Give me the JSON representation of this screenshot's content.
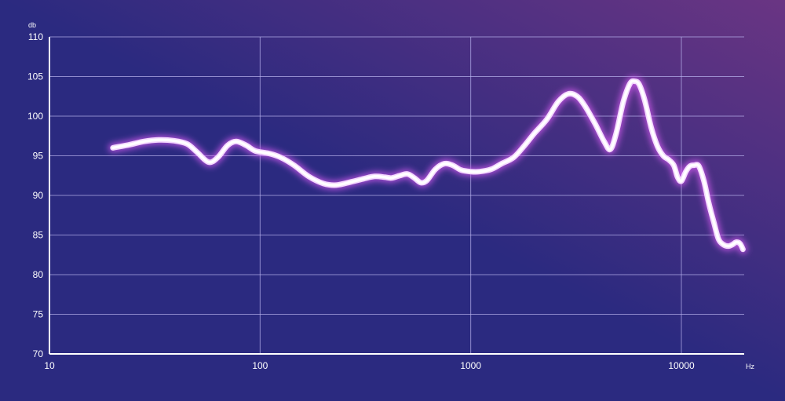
{
  "colors": {
    "background_start": "#2b2a80",
    "background_end": "#6a3583",
    "grid": "#b9b3ee",
    "axis": "#ffffff",
    "text": "#ffffff",
    "curve": "#ffffff",
    "curve_glow": "#d45cf0"
  },
  "chart_data": {
    "type": "line",
    "xscale": "log",
    "xlim": [
      10,
      20000
    ],
    "ylim": [
      70,
      110
    ],
    "xunit": "Hz",
    "yunit": "db",
    "xticks": [
      10,
      100,
      1000,
      10000
    ],
    "xtick_labels": [
      "10",
      "100",
      "1000",
      "10000"
    ],
    "yticks": [
      70,
      75,
      80,
      85,
      90,
      95,
      100,
      105,
      110
    ],
    "ytick_labels": [
      "70",
      "75",
      "80",
      "85",
      "90",
      "95",
      "100",
      "105",
      "110"
    ],
    "grid": true,
    "legend": "none",
    "series": [
      {
        "x": [
          20,
          24,
          28,
          33,
          39,
          45,
          50,
          57,
          63,
          70,
          77,
          86,
          95,
          110,
          125,
          145,
          170,
          200,
          230,
          270,
          310,
          350,
          390,
          420,
          460,
          500,
          540,
          580,
          620,
          680,
          750,
          820,
          900,
          1000,
          1100,
          1250,
          1400,
          1600,
          1800,
          2000,
          2300,
          2600,
          2900,
          3200,
          3500,
          3900,
          4300,
          4600,
          4900,
          5300,
          5700,
          6000,
          6300,
          6700,
          7200,
          7700,
          8200,
          8700,
          9200,
          9600,
          10000,
          10500,
          11000,
          11500,
          12100,
          12800,
          13500,
          14300,
          15000,
          15800,
          16700,
          17500,
          18200,
          19000,
          19600
        ],
        "y": [
          96,
          96.4,
          96.8,
          97,
          96.9,
          96.5,
          95.5,
          94.2,
          94.8,
          96.3,
          96.8,
          96.3,
          95.6,
          95.3,
          94.8,
          93.8,
          92.4,
          91.5,
          91.3,
          91.7,
          92.1,
          92.4,
          92.3,
          92.2,
          92.5,
          92.7,
          92.2,
          91.6,
          91.9,
          93.3,
          94,
          93.8,
          93.2,
          93,
          93,
          93.3,
          94,
          94.8,
          96.3,
          97.8,
          99.6,
          101.8,
          102.8,
          102.5,
          101.2,
          99,
          96.8,
          95.8,
          97.8,
          101.8,
          104.1,
          104.4,
          104,
          102,
          98.5,
          96.2,
          95,
          94.5,
          93.8,
          92.3,
          91.8,
          93,
          93.7,
          93.8,
          93.7,
          91.8,
          89,
          86.5,
          84.5,
          83.8,
          83.6,
          83.8,
          84.1,
          83.9,
          83.2
        ]
      }
    ]
  }
}
